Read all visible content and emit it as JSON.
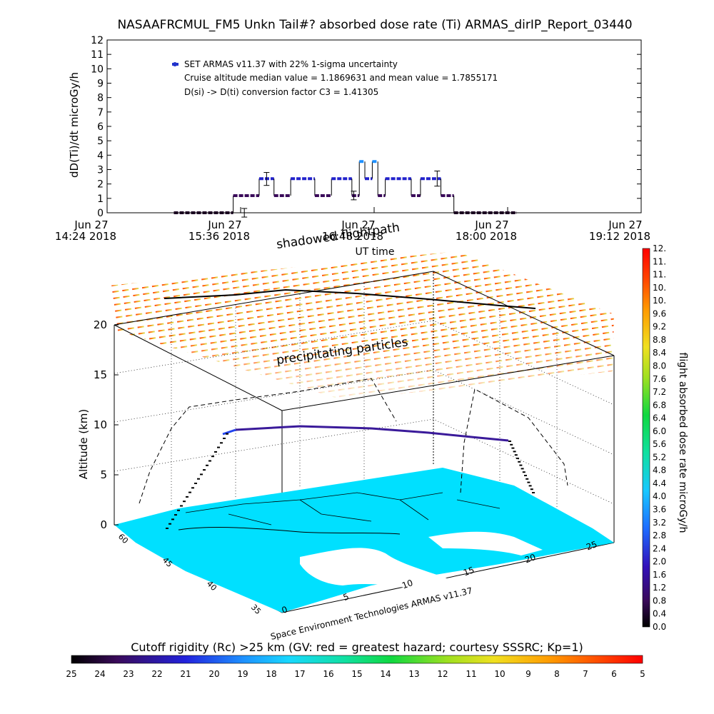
{
  "title": "NASAAFRCMUL_FM5 Unkn Tail#? absorbed dose rate (Ti) ARMAS_dirIP_Report_03440",
  "chart_data": [
    {
      "type": "scatter",
      "ylabel": "dD(Ti)/dt microGy/h",
      "xlabel": "UT time",
      "ylim": [
        0,
        12
      ],
      "xlim": [
        "14:24",
        "19:12"
      ],
      "yticks": [
        "0",
        "1",
        "2",
        "3",
        "4",
        "5",
        "6",
        "7",
        "8",
        "9",
        "10",
        "11",
        "12"
      ],
      "xticks": [
        {
          "day": "Jun 27",
          "time": "14:24 2018"
        },
        {
          "day": "Jun 27",
          "time": "15:36 2018"
        },
        {
          "day": "Jun 27",
          "time": "16:48 2018"
        },
        {
          "day": "Jun 27",
          "time": "18:00 2018"
        },
        {
          "day": "Jun 27",
          "time": "19:12 2018"
        }
      ],
      "legend": {
        "entry": "SET ARMAS v11.37 with 22% 1-sigma uncertainty",
        "median_line": "Cruise altitude median value = 1.1869631 and mean value = 1.7855171",
        "conversion_line": "D(si) -> D(ti) conversion factor C3 = 1.41305"
      },
      "segments": [
        {
          "x0": "15:00",
          "x1": "15:32",
          "y": 0.0
        },
        {
          "x0": "15:32",
          "x1": "15:46",
          "y": 1.19
        },
        {
          "x0": "15:46",
          "x1": "15:54",
          "y": 2.37
        },
        {
          "x0": "15:54",
          "x1": "16:03",
          "y": 1.19
        },
        {
          "x0": "16:03",
          "x1": "16:16",
          "y": 2.37
        },
        {
          "x0": "16:16",
          "x1": "16:25",
          "y": 1.19
        },
        {
          "x0": "16:25",
          "x1": "16:36",
          "y": 2.37
        },
        {
          "x0": "16:36",
          "x1": "16:40",
          "y": 1.19
        },
        {
          "x0": "16:40",
          "x1": "16:43",
          "y": 3.56
        },
        {
          "x0": "16:43",
          "x1": "16:47",
          "y": 2.37
        },
        {
          "x0": "16:47",
          "x1": "16:50",
          "y": 3.56
        },
        {
          "x0": "16:50",
          "x1": "16:54",
          "y": 1.19
        },
        {
          "x0": "16:54",
          "x1": "17:08",
          "y": 2.37
        },
        {
          "x0": "17:08",
          "x1": "17:13",
          "y": 1.19
        },
        {
          "x0": "17:13",
          "x1": "17:24",
          "y": 2.37
        },
        {
          "x0": "17:24",
          "x1": "17:31",
          "y": 1.19
        },
        {
          "x0": "17:31",
          "x1": "18:05",
          "y": 0.0
        }
      ],
      "error_bars": [
        {
          "x": "15:38",
          "y": 0.0,
          "lo": -0.3,
          "hi": 0.3
        },
        {
          "x": "15:50",
          "y": 2.37,
          "lo": 1.9,
          "hi": 2.8
        },
        {
          "x": "16:37",
          "y": 1.19,
          "lo": 0.9,
          "hi": 1.5
        },
        {
          "x": "17:22",
          "y": 2.37,
          "lo": 1.85,
          "hi": 2.9
        }
      ]
    },
    {
      "type": "3d-trajectory",
      "zlabel": "Altitude (km)",
      "zticks": [
        "0",
        "5",
        "10",
        "15",
        "20"
      ],
      "lat_ticks": [
        "60",
        "45",
        "40",
        "35"
      ],
      "lon_ticks": [
        "0",
        "5",
        "10",
        "15",
        "20",
        "25"
      ],
      "annotations": [
        "shadowed flightpath",
        "precipitating particles"
      ],
      "credit": "Space Environment Technologies ARMAS v11.37",
      "flight_altitude_km": 9.5,
      "particle_layer_altitude_km": 20
    },
    {
      "type": "colorbar",
      "label": "flight absorbed dose rate microGy/h",
      "ticks": [
        "0.0",
        "0.4",
        "0.8",
        "1.2",
        "1.6",
        "2.0",
        "2.4",
        "2.8",
        "3.2",
        "3.6",
        "4.0",
        "4.4",
        "4.8",
        "5.2",
        "5.6",
        "6.0",
        "6.4",
        "6.8",
        "7.2",
        "7.6",
        "8.0",
        "8.4",
        "8.8",
        "9.2",
        "9.6",
        "10.",
        "10.",
        "11.",
        "11.",
        "12."
      ]
    },
    {
      "type": "colorbar",
      "label": "Cutoff rigidity (Rc) >25 km (GV: red = greatest hazard; courtesy SSSRC; Kp=1)",
      "ticks": [
        "25",
        "24",
        "23",
        "22",
        "21",
        "20",
        "19",
        "18",
        "17",
        "16",
        "15",
        "14",
        "13",
        "12",
        "11",
        "10",
        "9",
        "8",
        "7",
        "6",
        "5"
      ]
    }
  ],
  "colors": {
    "dose_low": "#3a0a5a",
    "dose_mid": "#2222cc",
    "dose_high": "#1e90ff",
    "sea": "#00e0ff",
    "land": "#ffffff",
    "particles_high": "#ff0000",
    "particles_low": "#d4e84a"
  }
}
